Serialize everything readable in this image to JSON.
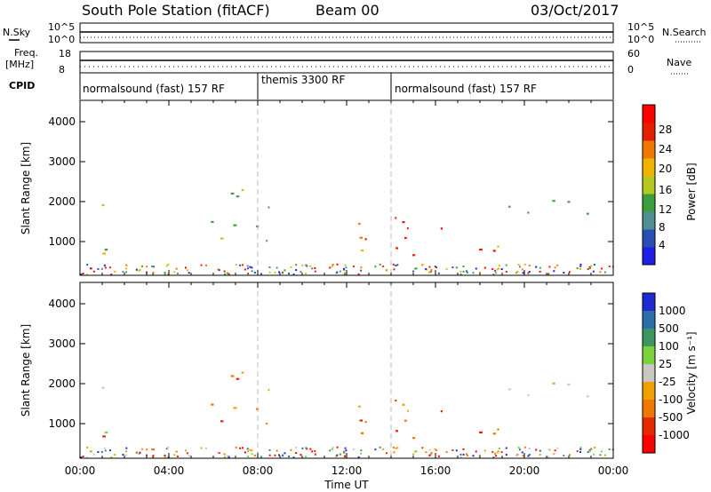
{
  "header": {
    "station": "South Pole Station (fitACF)",
    "beam": "Beam 00",
    "date": "03/Oct/2017"
  },
  "noise_panel": {
    "left_label": "N.Sky",
    "left_ticks": [
      "10^5",
      "10^0"
    ],
    "right_label": "N.Search",
    "right_ticks": [
      "10^5",
      "10^0"
    ]
  },
  "freq_panel": {
    "left_label_1": "Freq.",
    "left_label_2": "[MHz]",
    "left_ticks": [
      "18",
      "8"
    ],
    "right_label": "Nave",
    "right_ticks": [
      "60",
      "0"
    ]
  },
  "cpid": {
    "label": "CPID",
    "segments": [
      {
        "name": "normalsound (fast) 157 RF",
        "start_hour": 0,
        "end_hour": 8.0
      },
      {
        "name": "themis 3300 RF",
        "start_hour": 8.0,
        "end_hour": 14.0
      },
      {
        "name": "normalsound (fast) 157 RF",
        "start_hour": 14.0,
        "end_hour": 24
      }
    ]
  },
  "x_axis": {
    "title": "Time UT",
    "tick_labels": [
      "00:00",
      "04:00",
      "08:00",
      "12:00",
      "16:00",
      "20:00",
      "00:00"
    ]
  },
  "power_panel": {
    "ylabel": "Slant Range [km]",
    "yticks": [
      "1000",
      "2000",
      "3000",
      "4000"
    ],
    "colorbar_title": "Power [dB]",
    "colorbar_ticks": [
      "4",
      "8",
      "12",
      "16",
      "20",
      "24",
      "28"
    ],
    "colors": [
      "#1e1ee6",
      "#2a4fb4",
      "#4f8f8f",
      "#3c9e3c",
      "#b4c81e",
      "#f0b400",
      "#f07800",
      "#e61e00",
      "#ff0000"
    ]
  },
  "velocity_panel": {
    "ylabel": "Slant Range [km]",
    "yticks": [
      "1000",
      "2000",
      "3000",
      "4000"
    ],
    "colorbar_title": "Velocity [m s⁻¹]",
    "colorbar_ticks": [
      "1000",
      "500",
      "100",
      "25",
      "-25",
      "-100",
      "-500",
      "-1000"
    ],
    "colors": [
      "#1e2ad2",
      "#2a6eaa",
      "#3c9660",
      "#7cd23c",
      "#c8c8c0",
      "#f0a000",
      "#f07800",
      "#e62a00",
      "#ff0000"
    ]
  },
  "chart_data": {
    "type": "heatmap",
    "x_range_hours": [
      0,
      24
    ],
    "y_range_km": [
      180,
      4600
    ],
    "scatter_regions": [
      {
        "t": [
          0.0,
          1.5
        ],
        "r": [
          1900,
          2150
        ],
        "power": "medium",
        "velocity": "near_zero"
      },
      {
        "t": [
          0.0,
          1.5
        ],
        "r": [
          650,
          1250
        ],
        "power": "medium-high",
        "velocity": "mixed"
      },
      {
        "t": [
          5.5,
          9.0
        ],
        "r": [
          800,
          2400
        ],
        "power": "medium",
        "velocity": "negative"
      },
      {
        "t": [
          11.0,
          17.5
        ],
        "r": [
          700,
          1700
        ],
        "power": "high",
        "velocity": "negative"
      },
      {
        "t": [
          17.0,
          20.0
        ],
        "r": [
          500,
          1000
        ],
        "power": "high",
        "velocity": "strongly_negative"
      },
      {
        "t": [
          18.0,
          24.0
        ],
        "r": [
          1600,
          2100
        ],
        "power": "medium",
        "velocity": "near_zero"
      }
    ]
  }
}
